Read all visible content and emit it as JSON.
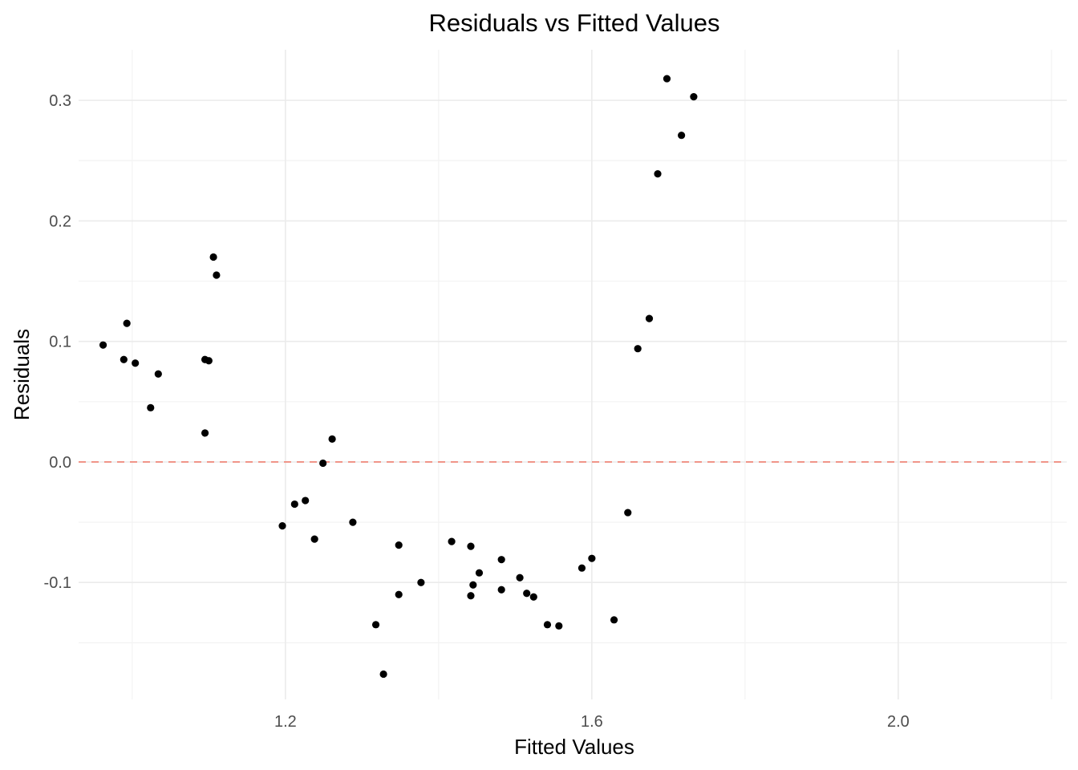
{
  "chart_data": {
    "type": "scatter",
    "title": "Residuals vs Fitted Values",
    "xlabel": "Fitted Values",
    "ylabel": "Residuals",
    "xlim": [
      0.93,
      2.22
    ],
    "ylim": [
      -0.197,
      0.342
    ],
    "x_ticks": [
      1.2,
      1.6,
      2.0
    ],
    "x_tick_labels": [
      "1.2",
      "1.6",
      "2.0"
    ],
    "y_ticks": [
      -0.1,
      0.0,
      0.1,
      0.2,
      0.3
    ],
    "y_tick_labels": [
      "-0.1",
      "0.0",
      "0.1",
      "0.2",
      "0.3"
    ],
    "grid": true,
    "reference_line": {
      "y": 0.0,
      "style": "dashed",
      "color": "#f08070"
    },
    "point_color": "#000000",
    "points": [
      {
        "x": 0.962,
        "y": 0.097
      },
      {
        "x": 0.989,
        "y": 0.085
      },
      {
        "x": 0.993,
        "y": 0.115
      },
      {
        "x": 1.004,
        "y": 0.082
      },
      {
        "x": 1.024,
        "y": 0.045
      },
      {
        "x": 1.034,
        "y": 0.073
      },
      {
        "x": 1.095,
        "y": 0.085
      },
      {
        "x": 1.095,
        "y": 0.024
      },
      {
        "x": 1.1,
        "y": 0.084
      },
      {
        "x": 1.106,
        "y": 0.17
      },
      {
        "x": 1.11,
        "y": 0.155
      },
      {
        "x": 1.196,
        "y": -0.053
      },
      {
        "x": 1.212,
        "y": -0.035
      },
      {
        "x": 1.226,
        "y": -0.032
      },
      {
        "x": 1.238,
        "y": -0.064
      },
      {
        "x": 1.249,
        "y": -0.001
      },
      {
        "x": 1.261,
        "y": 0.019
      },
      {
        "x": 1.288,
        "y": -0.05
      },
      {
        "x": 1.318,
        "y": -0.135
      },
      {
        "x": 1.328,
        "y": -0.176
      },
      {
        "x": 1.348,
        "y": -0.069
      },
      {
        "x": 1.348,
        "y": -0.11
      },
      {
        "x": 1.377,
        "y": -0.1
      },
      {
        "x": 1.417,
        "y": -0.066
      },
      {
        "x": 1.442,
        "y": -0.07
      },
      {
        "x": 1.442,
        "y": -0.111
      },
      {
        "x": 1.445,
        "y": -0.102
      },
      {
        "x": 1.453,
        "y": -0.092
      },
      {
        "x": 1.482,
        "y": -0.081
      },
      {
        "x": 1.482,
        "y": -0.106
      },
      {
        "x": 1.506,
        "y": -0.096
      },
      {
        "x": 1.515,
        "y": -0.109
      },
      {
        "x": 1.524,
        "y": -0.112
      },
      {
        "x": 1.542,
        "y": -0.135
      },
      {
        "x": 1.557,
        "y": -0.136
      },
      {
        "x": 1.587,
        "y": -0.088
      },
      {
        "x": 1.6,
        "y": -0.08
      },
      {
        "x": 1.629,
        "y": -0.131
      },
      {
        "x": 1.647,
        "y": -0.042
      },
      {
        "x": 1.66,
        "y": 0.094
      },
      {
        "x": 1.675,
        "y": 0.119
      },
      {
        "x": 1.686,
        "y": 0.239
      },
      {
        "x": 1.698,
        "y": 0.318
      },
      {
        "x": 1.717,
        "y": 0.271
      },
      {
        "x": 1.733,
        "y": 0.303
      }
    ]
  }
}
